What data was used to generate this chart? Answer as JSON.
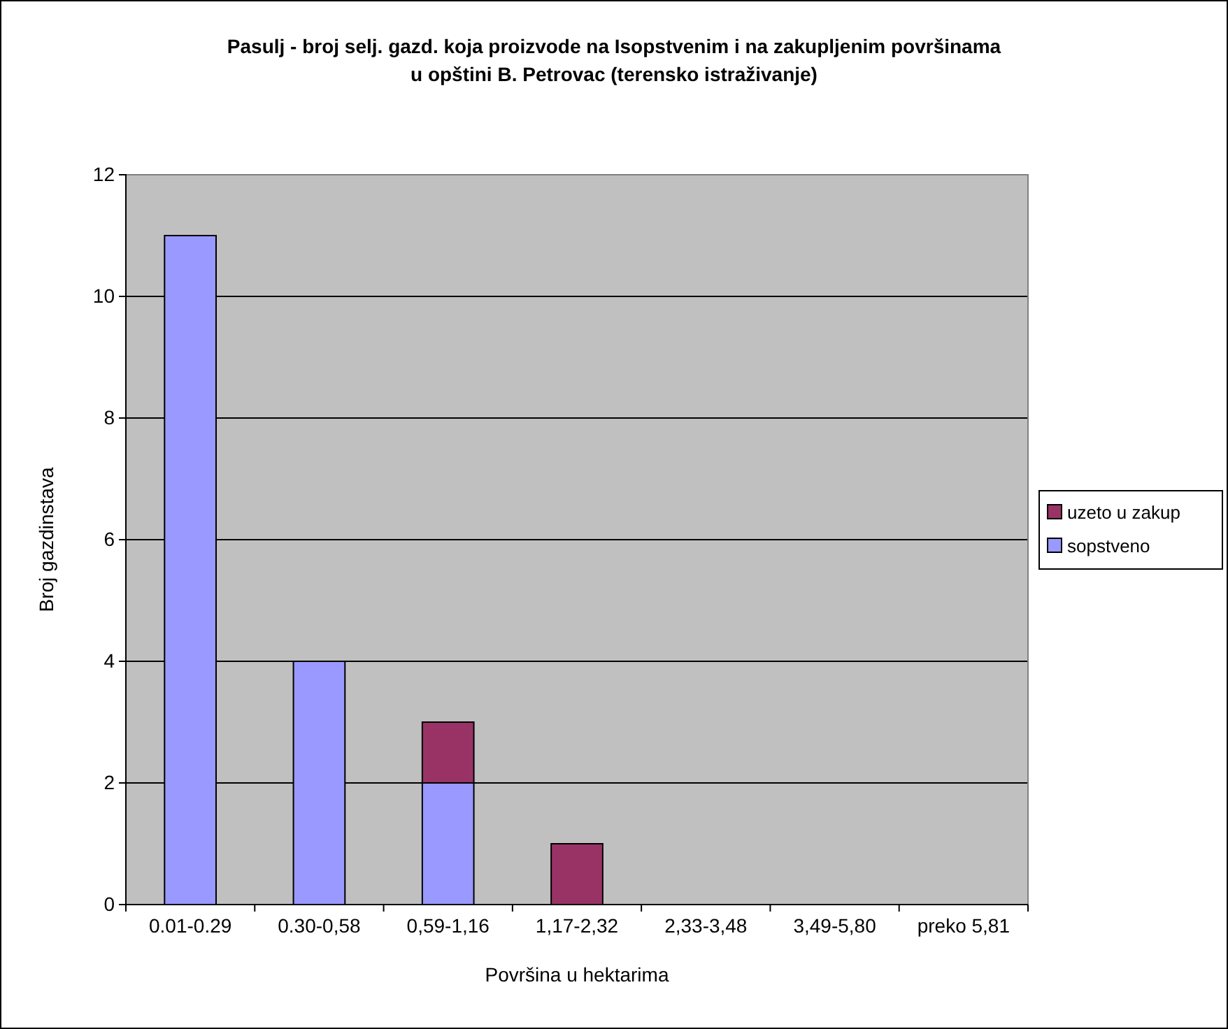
{
  "chart_data": {
    "type": "bar",
    "stacked": true,
    "title": "Pasulj - broj selj. gazd. koja proizvode na Isopstvenim i na zakupljenim površinama u opštini B. Petrovac (terensko istraživanje)",
    "xlabel": "Površina u hektarima",
    "ylabel": "Broj gazdinstava",
    "categories": [
      "0.01-0.29",
      "0.30-0,58",
      "0,59-1,16",
      "1,17-2,32",
      "2,33-3,48",
      "3,49-5,80",
      "preko 5,81"
    ],
    "series": [
      {
        "name": "sopstveno",
        "color": "#9999ff",
        "values": [
          11,
          4,
          2,
          0,
          0,
          0,
          0
        ]
      },
      {
        "name": "uzeto u zakup",
        "color": "#993366",
        "values": [
          0,
          0,
          1,
          1,
          0,
          0,
          0
        ]
      }
    ],
    "ylim": [
      0,
      12
    ],
    "yticks": [
      0,
      2,
      4,
      6,
      8,
      10,
      12
    ],
    "grid": "y",
    "legend": "right"
  }
}
